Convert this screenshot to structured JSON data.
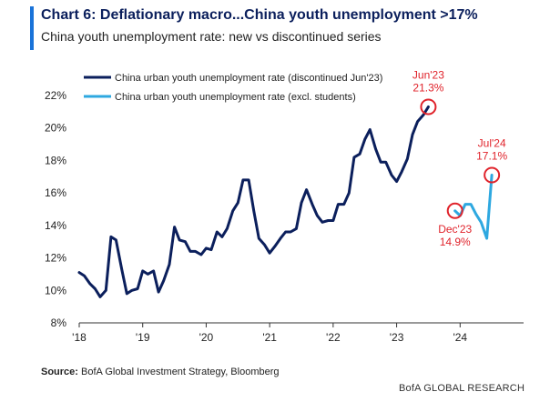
{
  "header": {
    "title": "Chart 6: Deflationary macro...China youth unemployment >17%",
    "subtitle": "China youth unemployment rate: new vs discontinued series"
  },
  "footer": {
    "source_label": "Source:",
    "source_text": "BofA Global Investment Strategy, Bloomberg",
    "branding": "BofA GLOBAL RESEARCH"
  },
  "colors": {
    "accent": "#1a73d9",
    "series_dark": "#0b1f5c",
    "series_light": "#2ea8e0",
    "annotation": "#e0232b",
    "axis": "#333333"
  },
  "chart_data": {
    "type": "line",
    "title": "China youth unemployment rate: new vs discontinued series",
    "xlabel": "",
    "ylabel": "",
    "xlim": [
      2018.0,
      2025.0
    ],
    "ylim": [
      8,
      22
    ],
    "yticks": [
      8,
      10,
      12,
      14,
      16,
      18,
      20,
      22
    ],
    "ytick_labels": [
      "8%",
      "10%",
      "12%",
      "14%",
      "16%",
      "18%",
      "20%",
      "22%"
    ],
    "xticks": [
      2018,
      2019,
      2020,
      2021,
      2022,
      2023,
      2024
    ],
    "xtick_labels": [
      "'18",
      "'19",
      "'20",
      "'21",
      "'22",
      "'23",
      "'24"
    ],
    "grid": false,
    "legend_position": "top-left",
    "series": [
      {
        "name": "China urban youth unemployment rate (discontinued Jun'23)",
        "color": "#0b1f5c",
        "points": [
          [
            2018.0,
            11.1
          ],
          [
            2018.08,
            10.9
          ],
          [
            2018.17,
            10.4
          ],
          [
            2018.25,
            10.1
          ],
          [
            2018.33,
            9.6
          ],
          [
            2018.42,
            10.0
          ],
          [
            2018.5,
            13.3
          ],
          [
            2018.58,
            13.1
          ],
          [
            2018.67,
            11.3
          ],
          [
            2018.75,
            9.8
          ],
          [
            2018.83,
            10.0
          ],
          [
            2018.92,
            10.1
          ],
          [
            2019.0,
            11.2
          ],
          [
            2019.08,
            11.0
          ],
          [
            2019.17,
            11.2
          ],
          [
            2019.25,
            9.9
          ],
          [
            2019.33,
            10.6
          ],
          [
            2019.42,
            11.6
          ],
          [
            2019.5,
            13.9
          ],
          [
            2019.58,
            13.1
          ],
          [
            2019.67,
            13.0
          ],
          [
            2019.75,
            12.4
          ],
          [
            2019.83,
            12.4
          ],
          [
            2019.92,
            12.2
          ],
          [
            2020.0,
            12.6
          ],
          [
            2020.08,
            12.5
          ],
          [
            2020.17,
            13.6
          ],
          [
            2020.25,
            13.3
          ],
          [
            2020.33,
            13.8
          ],
          [
            2020.42,
            14.9
          ],
          [
            2020.5,
            15.4
          ],
          [
            2020.58,
            16.8
          ],
          [
            2020.67,
            16.8
          ],
          [
            2020.75,
            14.9
          ],
          [
            2020.83,
            13.2
          ],
          [
            2020.92,
            12.8
          ],
          [
            2021.0,
            12.3
          ],
          [
            2021.08,
            12.7
          ],
          [
            2021.17,
            13.2
          ],
          [
            2021.25,
            13.6
          ],
          [
            2021.33,
            13.6
          ],
          [
            2021.42,
            13.8
          ],
          [
            2021.5,
            15.4
          ],
          [
            2021.58,
            16.2
          ],
          [
            2021.67,
            15.3
          ],
          [
            2021.75,
            14.6
          ],
          [
            2021.83,
            14.2
          ],
          [
            2021.92,
            14.3
          ],
          [
            2022.0,
            14.3
          ],
          [
            2022.08,
            15.3
          ],
          [
            2022.17,
            15.3
          ],
          [
            2022.25,
            16.0
          ],
          [
            2022.33,
            18.2
          ],
          [
            2022.42,
            18.4
          ],
          [
            2022.5,
            19.3
          ],
          [
            2022.58,
            19.9
          ],
          [
            2022.67,
            18.7
          ],
          [
            2022.75,
            17.9
          ],
          [
            2022.83,
            17.9
          ],
          [
            2022.92,
            17.1
          ],
          [
            2023.0,
            16.7
          ],
          [
            2023.08,
            17.3
          ],
          [
            2023.17,
            18.1
          ],
          [
            2023.25,
            19.6
          ],
          [
            2023.33,
            20.4
          ],
          [
            2023.42,
            20.8
          ],
          [
            2023.5,
            21.3
          ]
        ]
      },
      {
        "name": "China urban youth unemployment rate (excl. students)",
        "color": "#2ea8e0",
        "points": [
          [
            2023.92,
            14.9
          ],
          [
            2024.0,
            14.6
          ],
          [
            2024.08,
            15.3
          ],
          [
            2024.17,
            15.3
          ],
          [
            2024.25,
            14.7
          ],
          [
            2024.33,
            14.2
          ],
          [
            2024.42,
            13.2
          ],
          [
            2024.5,
            17.1
          ]
        ]
      }
    ],
    "annotations": [
      {
        "label": "Jun'23",
        "value": "21.3%",
        "x": 2023.5,
        "y": 21.3,
        "placement": "above"
      },
      {
        "label": "Dec'23",
        "value": "14.9%",
        "x": 2023.92,
        "y": 14.9,
        "placement": "below"
      },
      {
        "label": "Jul'24",
        "value": "17.1%",
        "x": 2024.5,
        "y": 17.1,
        "placement": "above"
      }
    ]
  }
}
